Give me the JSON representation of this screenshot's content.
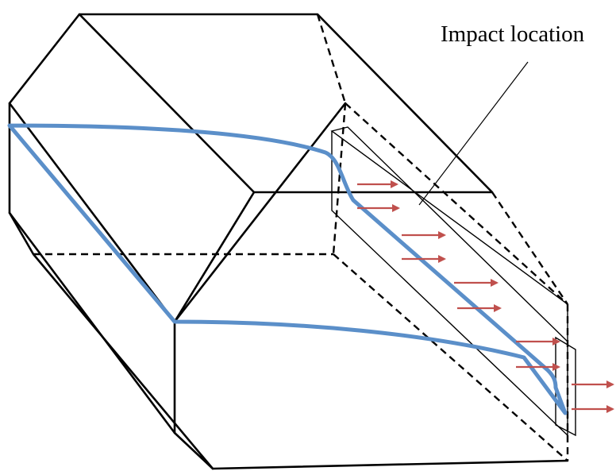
{
  "annotation": {
    "text": "Impact location"
  },
  "colors": {
    "outline": "#000000",
    "curve": "#5b8fc9",
    "arrow": "#c0504d"
  },
  "icons": {
    "arrow": "force-arrow-icon"
  }
}
